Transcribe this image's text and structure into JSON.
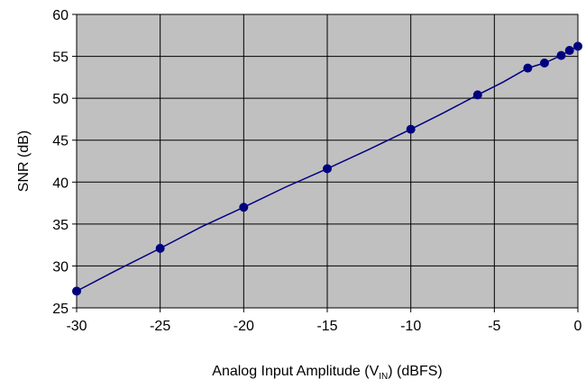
{
  "chart_data": {
    "type": "line",
    "title": "",
    "xlabel": "Analog Input Amplitude (V",
    "xlabel_subscript": "IN",
    "xlabel_suffix": ") (dBFS)",
    "ylabel": "SNR (dB)",
    "xlim": [
      -30,
      0
    ],
    "ylim": [
      25,
      60
    ],
    "xticks": [
      "-30",
      "-25",
      "-20",
      "-15",
      "-10",
      "-5",
      "0"
    ],
    "yticks": [
      "25",
      "30",
      "35",
      "40",
      "45",
      "50",
      "55",
      "60"
    ],
    "grid": true,
    "legend": "none",
    "colors": {
      "series": "#000080",
      "plot_background": "#c0c0c0",
      "grid": "#000000"
    },
    "series": [
      {
        "x": [
          -30,
          -25,
          -20,
          -15,
          -10,
          -6,
          -3,
          -2,
          -1,
          -0.5,
          0
        ],
        "y": [
          27.0,
          32.1,
          37.0,
          41.6,
          46.3,
          50.4,
          53.6,
          54.2,
          55.1,
          55.7,
          56.2
        ]
      }
    ],
    "line": {
      "x": [
        -30,
        -27.5,
        -25,
        -22.5,
        -20,
        -17.5,
        -15,
        -12.5,
        -10,
        -8,
        -6,
        -4.5,
        -3,
        -2,
        -1,
        -0.5,
        0
      ],
      "y": [
        27.0,
        29.6,
        32.1,
        34.7,
        37.0,
        39.4,
        41.6,
        43.9,
        46.3,
        48.3,
        50.4,
        51.9,
        53.6,
        54.2,
        55.1,
        55.7,
        56.2
      ]
    }
  }
}
